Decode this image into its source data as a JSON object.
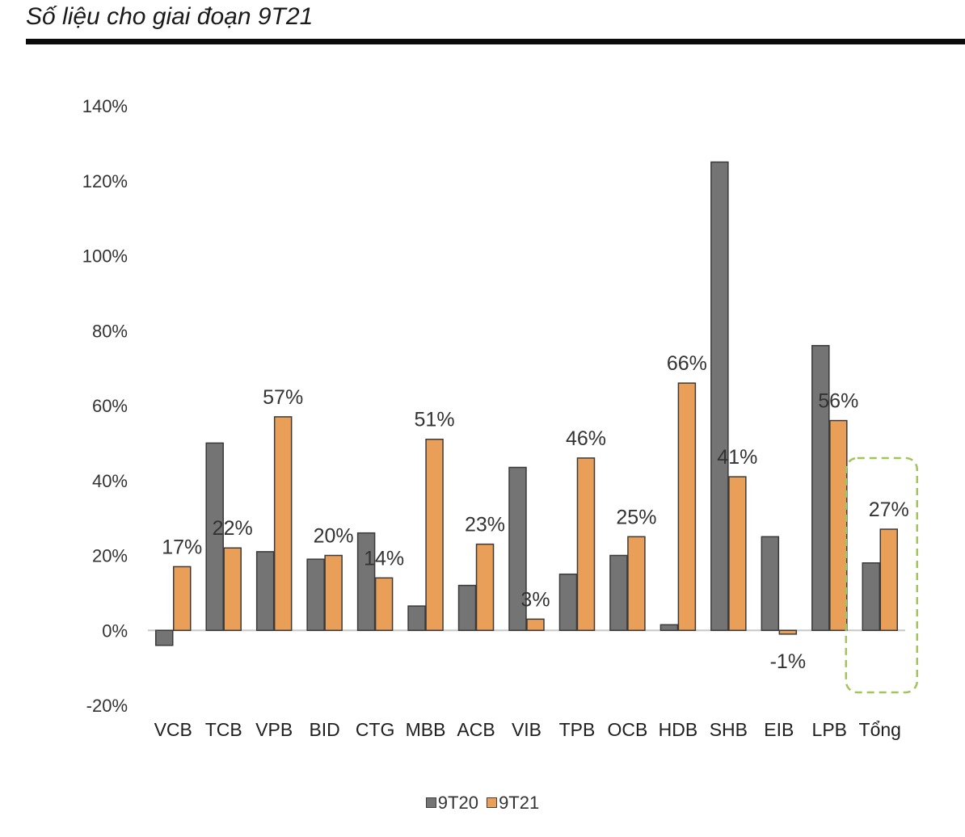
{
  "heading": "Số liệu cho giai đoạn 9T21",
  "chart_data": {
    "type": "bar",
    "categories": [
      "VCB",
      "TCB",
      "VPB",
      "BID",
      "CTG",
      "MBB",
      "ACB",
      "VIB",
      "TPB",
      "OCB",
      "HDB",
      "SHB",
      "EIB",
      "LPB",
      "Tổng"
    ],
    "series": [
      {
        "name": "9T20",
        "color": "#747474",
        "values": [
          -4,
          50,
          21,
          19,
          26,
          6.5,
          12,
          43.5,
          15,
          20,
          1.5,
          125,
          25,
          76,
          18
        ]
      },
      {
        "name": "9T21",
        "color": "#e99f57",
        "values": [
          17,
          22,
          57,
          20,
          14,
          51,
          23,
          3,
          46,
          25,
          66,
          41,
          -1,
          56,
          27
        ],
        "data_labels": [
          "17%",
          "22%",
          "57%",
          "20%",
          "14%",
          "51%",
          "23%",
          "3%",
          "46%",
          "25%",
          "66%",
          "41%",
          "-1%",
          "56%",
          "27%"
        ]
      }
    ],
    "ylim": [
      -20,
      140
    ],
    "yticks": [
      -20,
      0,
      20,
      40,
      60,
      80,
      100,
      120,
      140
    ],
    "ytick_labels": [
      "-20%",
      "0%",
      "20%",
      "40%",
      "60%",
      "80%",
      "100%",
      "120%",
      "140%"
    ],
    "highlight_category": "Tổng",
    "highlight_color": "#a3c45c",
    "legend_position": "bottom",
    "grid": false
  }
}
